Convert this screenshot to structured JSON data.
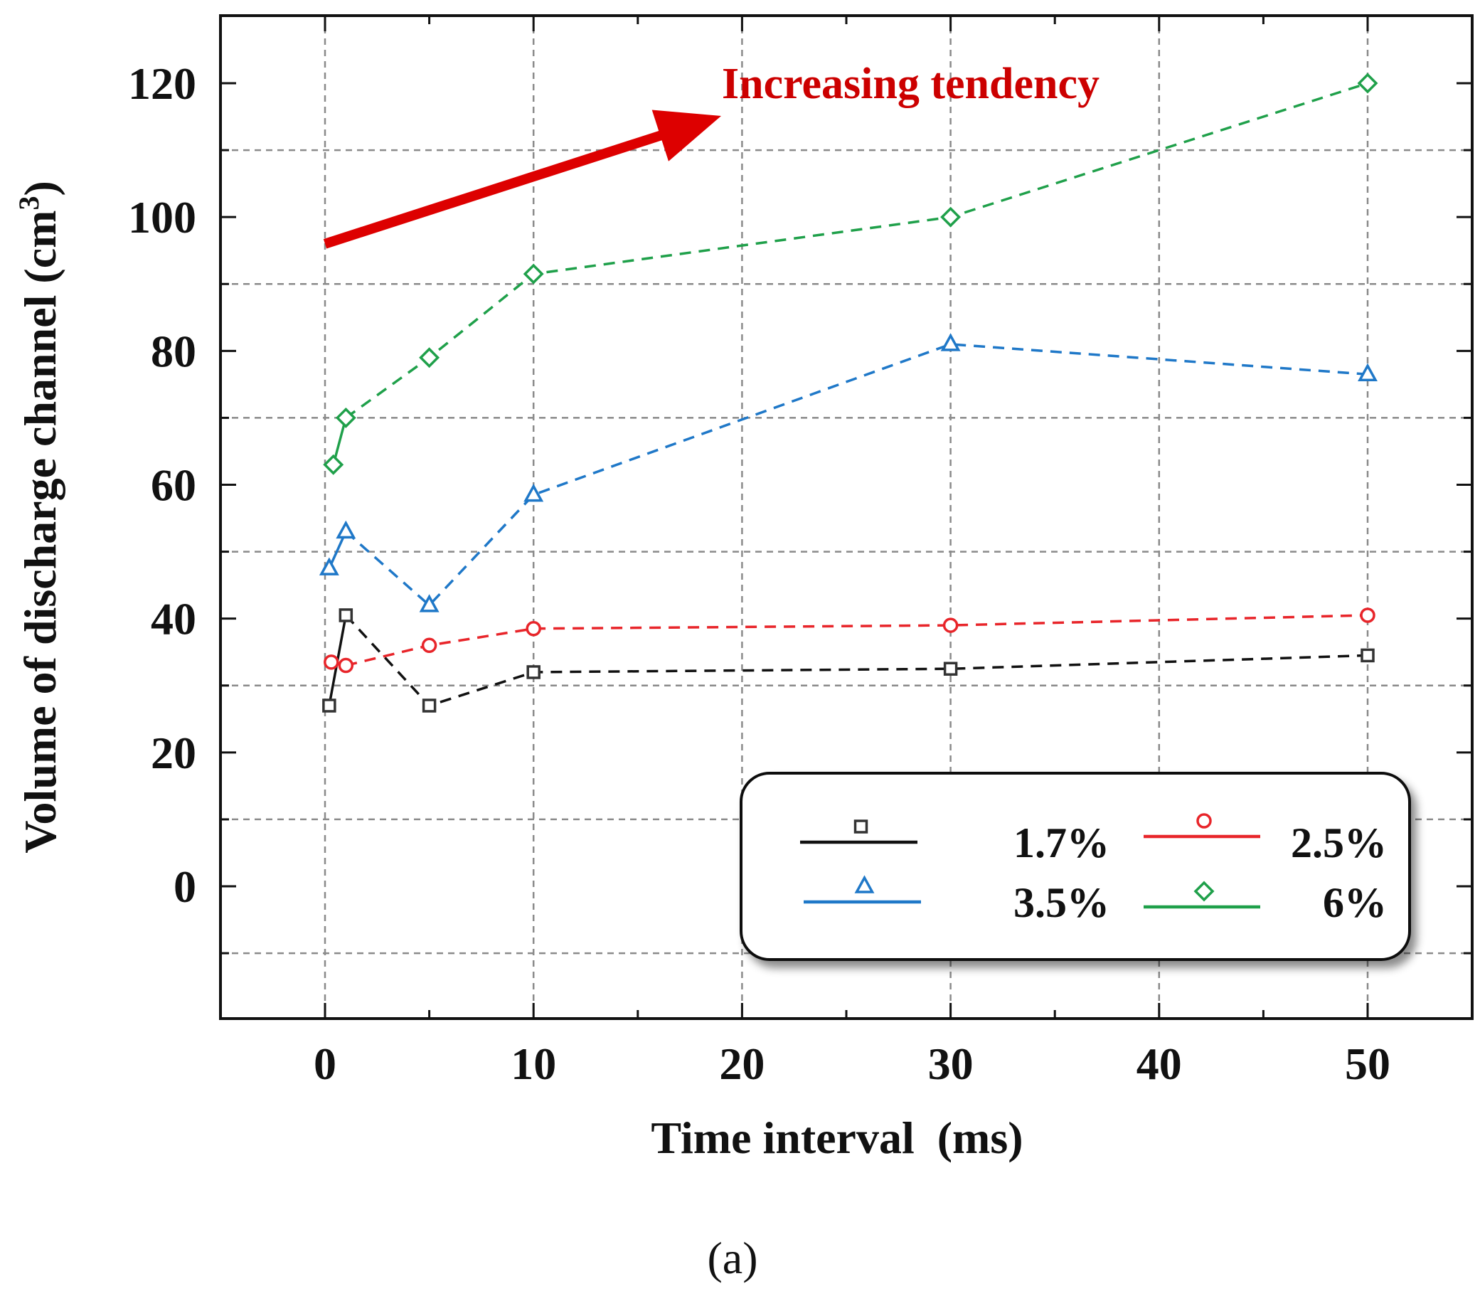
{
  "chart_data": {
    "type": "line",
    "title": "",
    "xlabel": "Time interval  (ms)",
    "ylabel": "Volume of discharge channel (cm",
    "ylabel_superscript": "3",
    "ylabel_close": ")",
    "xlim": [
      -5,
      55
    ],
    "ylim": [
      -20,
      130
    ],
    "xticks": [
      0,
      10,
      20,
      30,
      40,
      50
    ],
    "yticks": [
      0,
      20,
      40,
      60,
      80,
      100,
      120
    ],
    "grid": true,
    "legend_position": "bottom-right",
    "series": [
      {
        "name": "1.7%",
        "color": "#111111",
        "marker": "square",
        "x": [
          0.2,
          1,
          5,
          10,
          30,
          50
        ],
        "y": [
          27,
          40.5,
          27,
          32,
          32.5,
          34.5
        ]
      },
      {
        "name": "2.5%",
        "color": "#e8252a",
        "marker": "circle",
        "x": [
          0.3,
          1,
          5,
          10,
          30,
          50
        ],
        "y": [
          33.5,
          33,
          36,
          38.5,
          39,
          40.5
        ]
      },
      {
        "name": "3.5%",
        "color": "#1f78c8",
        "marker": "triangle",
        "x": [
          0.2,
          1,
          5,
          10,
          30,
          50
        ],
        "y": [
          47.5,
          53,
          42,
          58.5,
          81,
          76.5
        ]
      },
      {
        "name": "6%",
        "color": "#1fa04a",
        "marker": "diamond",
        "x": [
          0.4,
          1,
          5,
          10,
          30,
          50
        ],
        "y": [
          63,
          70,
          79,
          91.5,
          100,
          120
        ]
      }
    ],
    "annotation": {
      "text": "Increasing tendency",
      "color": "#cc0000",
      "arrow_from": [
        0,
        96
      ],
      "arrow_to": [
        19,
        115
      ]
    },
    "caption": "(a)"
  }
}
